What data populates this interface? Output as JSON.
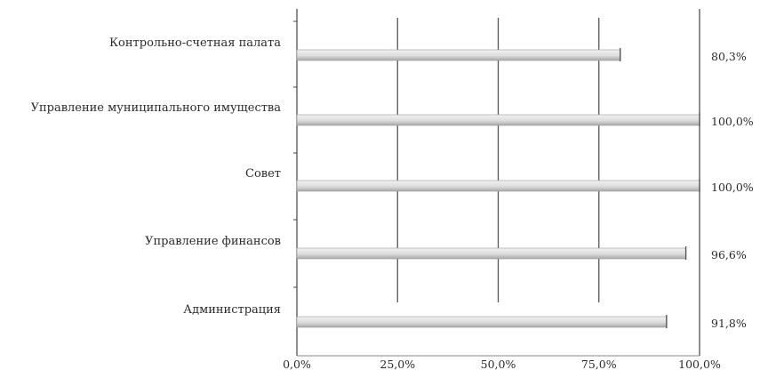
{
  "chart_data": {
    "type": "bar",
    "orientation": "horizontal",
    "categories": [
      "Контрольно-счетная палата",
      "Управление муниципального  имущества",
      "Совет",
      "Управление финансов",
      "Администрация"
    ],
    "values": [
      80.3,
      100.0,
      100.0,
      96.6,
      91.8
    ],
    "value_labels": [
      "80,3%",
      "100,0%",
      "100,0%",
      "96,6%",
      "91,8%"
    ],
    "xlim": [
      0,
      100
    ],
    "x_ticks": [
      0,
      25,
      50,
      75,
      100
    ],
    "x_tick_labels": [
      "0,0%",
      "25,0%",
      "50,0%",
      "75,0%",
      "100,0%"
    ],
    "grid": "vertical",
    "legend": "none",
    "bar_color": "#d4d4d4"
  }
}
